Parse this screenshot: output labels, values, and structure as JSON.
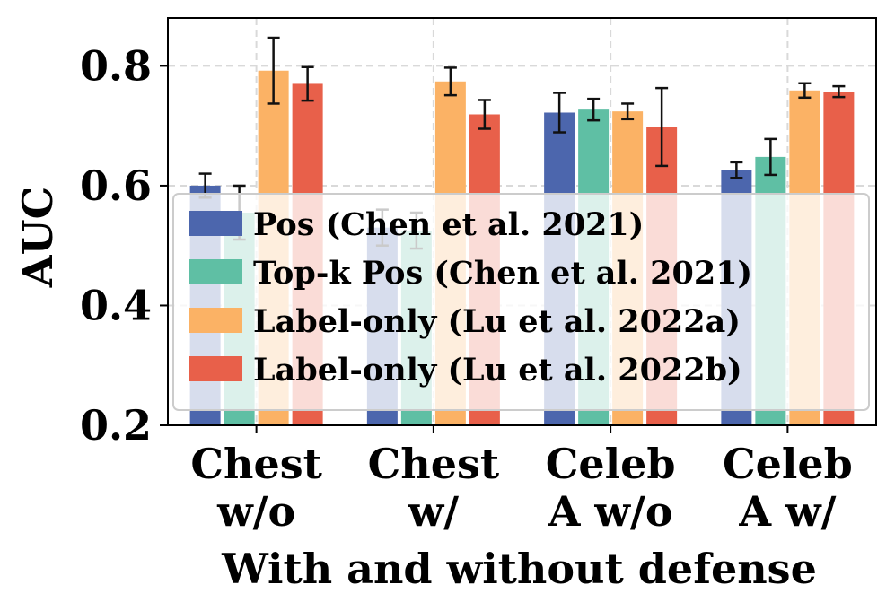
{
  "chart_data": {
    "type": "bar",
    "title": "",
    "xlabel": "With and without defense",
    "ylabel": "AUC",
    "ylim": [
      0.2,
      0.88
    ],
    "yticks": [
      0.2,
      0.4,
      0.6,
      0.8
    ],
    "ytick_labels": [
      "0.2",
      "0.4",
      "0.6",
      "0.8"
    ],
    "grid": true,
    "legend_position": "center-right",
    "categories": [
      [
        "Chest",
        "w/o"
      ],
      [
        "Chest",
        "w/"
      ],
      [
        "Celeb",
        "A w/o"
      ],
      [
        "Celeb",
        "A w/"
      ]
    ],
    "series": [
      {
        "name": "Pos (Chen et al. 2021)",
        "color": "#4c66ad",
        "values": [
          0.6,
          0.53,
          0.722,
          0.626
        ],
        "errors": [
          0.02,
          0.03,
          0.033,
          0.013
        ]
      },
      {
        "name": "Top-k Pos (Chen et al. 2021)",
        "color": "#5fbfa4",
        "values": [
          0.555,
          0.525,
          0.727,
          0.648
        ],
        "errors": [
          0.045,
          0.03,
          0.018,
          0.03
        ]
      },
      {
        "name": "Label-only (Lu et al. 2022a)",
        "color": "#fbb265",
        "values": [
          0.792,
          0.774,
          0.724,
          0.759
        ],
        "errors": [
          0.055,
          0.023,
          0.013,
          0.012
        ]
      },
      {
        "name": "Label-only (Lu et al. 2022b)",
        "color": "#e8604a",
        "values": [
          0.77,
          0.719,
          0.698,
          0.757
        ],
        "errors": [
          0.028,
          0.024,
          0.065,
          0.009
        ]
      }
    ]
  }
}
